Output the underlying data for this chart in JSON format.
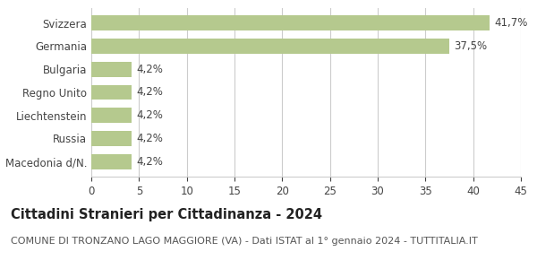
{
  "categories": [
    "Svizzera",
    "Germania",
    "Bulgaria",
    "Regno Unito",
    "Liechtenstein",
    "Russia",
    "Macedonia d/N."
  ],
  "values": [
    41.7,
    37.5,
    4.2,
    4.2,
    4.2,
    4.2,
    4.2
  ],
  "labels": [
    "41,7%",
    "37,5%",
    "4,2%",
    "4,2%",
    "4,2%",
    "4,2%",
    "4,2%"
  ],
  "bar_color": "#b5c98e",
  "background_color": "#ffffff",
  "grid_color": "#cccccc",
  "xlim": [
    0,
    45
  ],
  "xticks": [
    0,
    5,
    10,
    15,
    20,
    25,
    30,
    35,
    40,
    45
  ],
  "title": "Cittadini Stranieri per Cittadinanza - 2024",
  "subtitle": "COMUNE DI TRONZANO LAGO MAGGIORE (VA) - Dati ISTAT al 1° gennaio 2024 - TUTTITALIA.IT",
  "title_fontsize": 10.5,
  "subtitle_fontsize": 8,
  "label_fontsize": 8.5,
  "tick_fontsize": 8.5,
  "ylabel_fontsize": 8.5
}
